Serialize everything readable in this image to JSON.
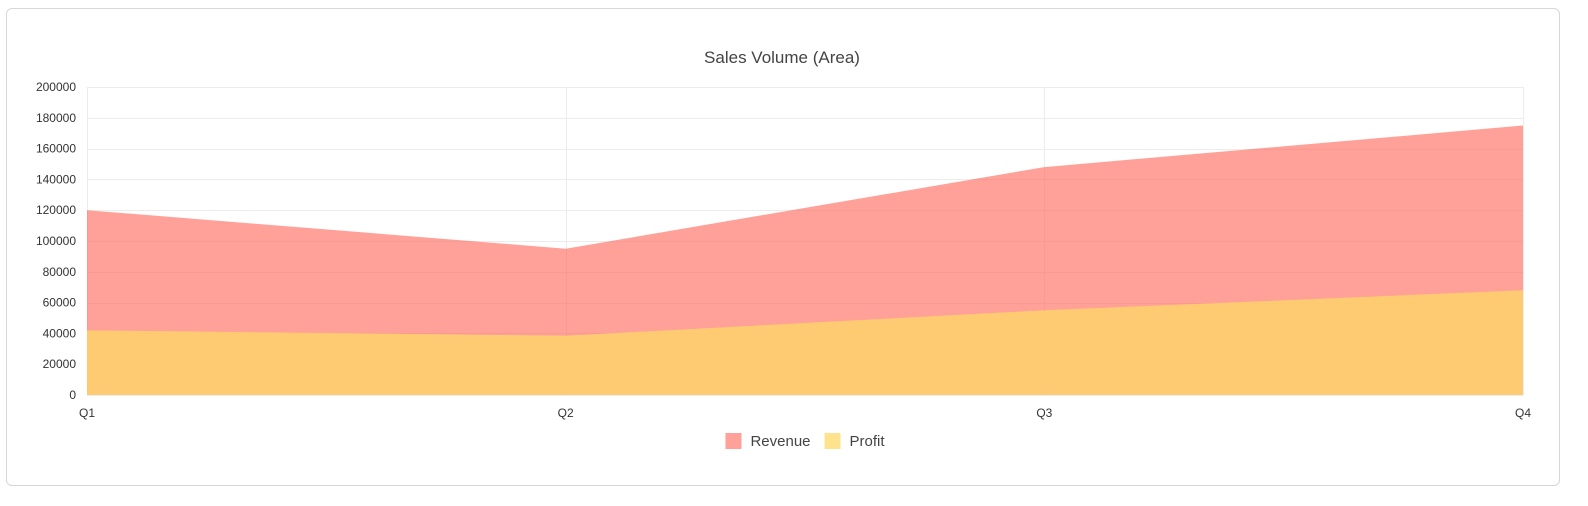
{
  "chart_data": {
    "type": "area",
    "title": "Sales Volume (Area)",
    "categories": [
      "Q1",
      "Q2",
      "Q3",
      "Q4"
    ],
    "ylim": [
      0,
      200000
    ],
    "y_ticks": [
      "0",
      "20000",
      "40000",
      "60000",
      "80000",
      "100000",
      "120000",
      "140000",
      "160000",
      "180000",
      "200000"
    ],
    "grid": true,
    "legend_position": "bottom",
    "series": [
      {
        "name": "Revenue",
        "values": [
          120000,
          95000,
          148000,
          175000
        ],
        "color": "#ff6f61",
        "fill_opacity": 0.65
      },
      {
        "name": "Profit",
        "values": [
          42000,
          38500,
          55000,
          68000
        ],
        "color": "#ffd966",
        "fill_opacity": 0.75
      }
    ]
  }
}
